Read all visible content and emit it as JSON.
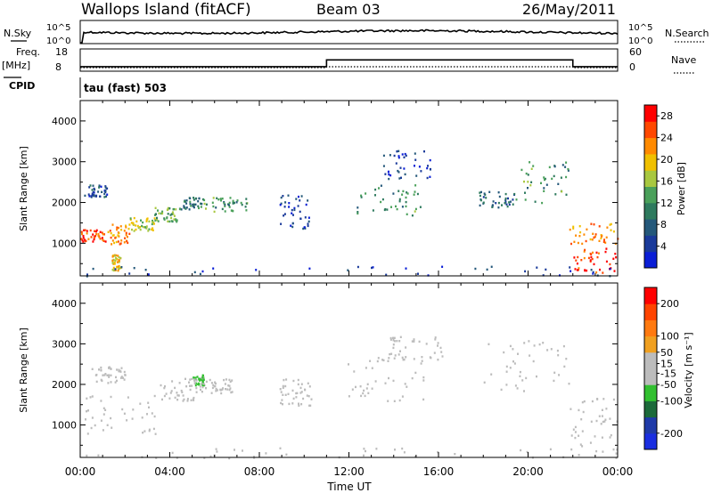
{
  "header": {
    "station": "Wallops Island (fitACF)",
    "beam": "Beam 03",
    "date": "26/May/2011"
  },
  "labels": {
    "nsky": "N.Sky",
    "nsky_top": "10^5",
    "nsky_bottom": "10^0",
    "nsearch": "N.Search",
    "nsearch_top": "10^5",
    "nsearch_bottom": "10^0",
    "freq_line1": "Freq.",
    "freq_line2": "[MHz]",
    "freq_top": "18",
    "freq_bottom": "8",
    "nave": "Nave",
    "nave_top": "60",
    "nave_bottom": "0",
    "cpid_label": "CPID",
    "cpid_value": "tau (fast) 503",
    "x_title": "Time UT",
    "power_unit": "Power [dB]",
    "velocity_unit": "Velocity [m s⁻¹]"
  },
  "colors": {
    "power_scale": [
      "#0a1ed6",
      "#1a3a9a",
      "#24587a",
      "#2e7a5e",
      "#4aa05a",
      "#a8c840",
      "#f0c000",
      "#ff8a00",
      "#ff4800",
      "#ff0000"
    ],
    "velocity_scale": [
      "#1a2ee0",
      "#1f3aa8",
      "#1c6a3a",
      "#32c030",
      "#bcbcbc",
      "#bcbcbc",
      "#f0a020",
      "#ff7a10",
      "#ff4400",
      "#ff0000"
    ],
    "gray": "#bcbcbc"
  },
  "chart_data": [
    {
      "type": "heatmap",
      "name": "power",
      "xlabel": "Time UT",
      "ylabel": "Slant Range [km]",
      "x_ticks": [
        "00:00",
        "04:00",
        "08:00",
        "12:00",
        "16:00",
        "20:00",
        "00:00"
      ],
      "y_ticks": [
        1000,
        2000,
        3000,
        4000
      ],
      "ylim": [
        200,
        4500
      ],
      "colorbar": {
        "label": "Power [dB]",
        "ticks": [
          4,
          8,
          12,
          16,
          20,
          24,
          28
        ],
        "range": [
          0,
          30
        ]
      },
      "regions": [
        {
          "t": [
            0,
            1.2
          ],
          "r": [
            1050,
            1350
          ],
          "v": 26
        },
        {
          "t": [
            1.2,
            2.2
          ],
          "r": [
            1000,
            1500
          ],
          "v": 22
        },
        {
          "t": [
            2.2,
            3.3
          ],
          "r": [
            1250,
            1650
          ],
          "v": 17
        },
        {
          "t": [
            3.3,
            4.4
          ],
          "r": [
            1550,
            1900
          ],
          "v": 14
        },
        {
          "t": [
            4.4,
            5.5
          ],
          "r": [
            1850,
            2150
          ],
          "v": 10
        },
        {
          "t": [
            5.5,
            7.5
          ],
          "r": [
            1800,
            2150
          ],
          "v": 12
        },
        {
          "t": [
            0.1,
            1.2
          ],
          "r": [
            2150,
            2450
          ],
          "v": 6
        },
        {
          "t": [
            1.4,
            1.8
          ],
          "r": [
            350,
            750
          ],
          "v": 20
        },
        {
          "t": [
            8.9,
            10.2
          ],
          "r": [
            1350,
            2200
          ],
          "v": 5
        },
        {
          "t": [
            12.3,
            15.2
          ],
          "r": [
            1650,
            2450
          ],
          "v": 12
        },
        {
          "t": [
            13.5,
            15.7
          ],
          "r": [
            2600,
            3300
          ],
          "v": 4
        },
        {
          "t": [
            17.8,
            19.4
          ],
          "r": [
            1900,
            2300
          ],
          "v": 8
        },
        {
          "t": [
            19.4,
            21.8
          ],
          "r": [
            2000,
            3100
          ],
          "v": 12
        },
        {
          "t": [
            21.8,
            24
          ],
          "r": [
            1000,
            1500
          ],
          "v": 22
        },
        {
          "t": [
            22.0,
            23.9
          ],
          "r": [
            300,
            900
          ],
          "v": 27
        },
        {
          "t": [
            0.2,
            24
          ],
          "r": [
            200,
            450
          ],
          "v": 5
        }
      ]
    },
    {
      "type": "heatmap",
      "name": "velocity",
      "xlabel": "Time UT",
      "ylabel": "Slant Range [km]",
      "x_ticks": [
        "00:00",
        "04:00",
        "08:00",
        "12:00",
        "16:00",
        "20:00",
        "00:00"
      ],
      "y_ticks": [
        1000,
        2000,
        3000,
        4000
      ],
      "ylim": [
        200,
        4500
      ],
      "colorbar": {
        "label": "Velocity [m s⁻¹]",
        "ticks": [
          200,
          100,
          50,
          15,
          -15,
          -50,
          -100,
          -200
        ],
        "range": [
          -250,
          250
        ]
      },
      "regions": [
        {
          "t": [
            0.1,
            3.4
          ],
          "r": [
            800,
            1750
          ],
          "v": 0
        },
        {
          "t": [
            0.5,
            2.0
          ],
          "r": [
            2050,
            2450
          ],
          "v": 0
        },
        {
          "t": [
            3.4,
            5.2
          ],
          "r": [
            1600,
            2200
          ],
          "v": 0
        },
        {
          "t": [
            5.3,
            6.8
          ],
          "r": [
            1800,
            2150
          ],
          "v": 30
        },
        {
          "t": [
            5.0,
            5.5
          ],
          "r": [
            2000,
            2250
          ],
          "v": -60
        },
        {
          "t": [
            8.9,
            10.3
          ],
          "r": [
            1500,
            2150
          ],
          "v": 0
        },
        {
          "t": [
            11.8,
            15.5
          ],
          "r": [
            1600,
            2700
          ],
          "v": 0
        },
        {
          "t": [
            13.5,
            16.2
          ],
          "r": [
            2600,
            3200
          ],
          "v": 0
        },
        {
          "t": [
            18.0,
            21.8
          ],
          "r": [
            1800,
            3100
          ],
          "v": 0
        },
        {
          "t": [
            21.8,
            24
          ],
          "r": [
            300,
            1700
          ],
          "v": 0
        },
        {
          "t": [
            0.2,
            24
          ],
          "r": [
            200,
            450
          ],
          "v": 0
        }
      ]
    }
  ]
}
